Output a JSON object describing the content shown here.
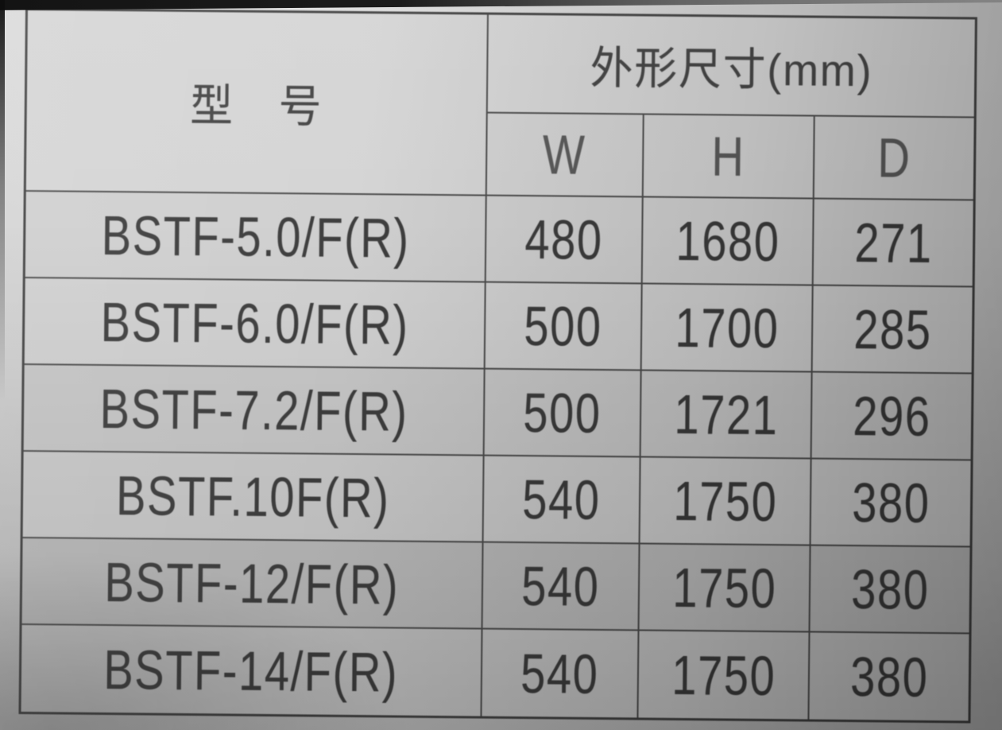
{
  "table": {
    "model_header": "型　号",
    "dim_header": "外形尺寸(mm)",
    "dim_columns": [
      "W",
      "H",
      "D"
    ],
    "rows": [
      {
        "model": "BSTF-5.0/F(R)",
        "w": "480",
        "h": "1680",
        "d": "271"
      },
      {
        "model": "BSTF-6.0/F(R)",
        "w": "500",
        "h": "1700",
        "d": "285"
      },
      {
        "model": "BSTF-7.2/F(R)",
        "w": "500",
        "h": "1721",
        "d": "296"
      },
      {
        "model": "BSTF.10F(R)",
        "w": "540",
        "h": "1750",
        "d": "380"
      },
      {
        "model": "BSTF-12/F(R)",
        "w": "540",
        "h": "1750",
        "d": "380"
      },
      {
        "model": "BSTF-14/F(R)",
        "w": "540",
        "h": "1750",
        "d": "380"
      }
    ],
    "colors": {
      "paper": "#cfcfcf",
      "grid_line": "#4a4a4a",
      "ink": "#3a3a3a",
      "faded_ink": "#777777",
      "page_edge": "#161616"
    }
  }
}
